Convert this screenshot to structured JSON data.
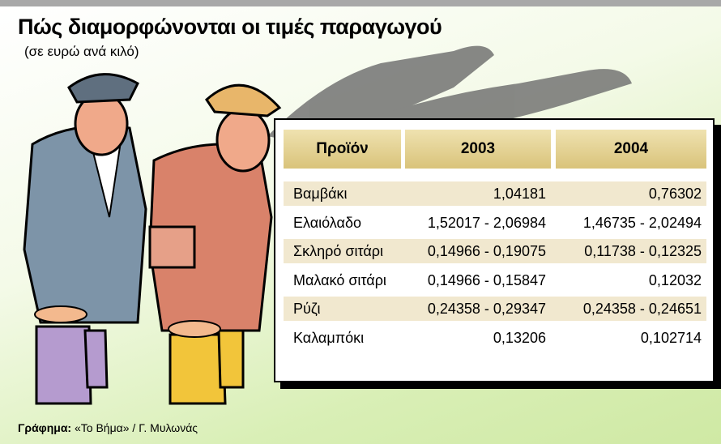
{
  "header": {
    "title": "Πώς διαμορφώνονται οι τιμές παραγωγού",
    "subtitle": "(σε ευρώ ανά κιλό)"
  },
  "table": {
    "columns": [
      "Προϊόν",
      "2003",
      "2004"
    ],
    "rows": [
      [
        "Βαμβάκι",
        "1,04181",
        "0,76302"
      ],
      [
        "Ελαιόλαδο",
        "1,52017 - 2,06984",
        "1,46735 - 2,02494"
      ],
      [
        "Σκληρό σιτάρι",
        "0,14966 - 0,19075",
        "0,11738 - 0,12325"
      ],
      [
        "Μαλακό σιτάρι",
        "0,14966 - 0,15847",
        "0,12032"
      ],
      [
        "Ρύζι",
        "0,24358 - 0,29347",
        "0,24358 - 0,24651"
      ],
      [
        "Καλαμπόκι",
        "0,13206",
        "0,102714"
      ]
    ]
  },
  "credit": {
    "label": "Γράφημα:",
    "text": "«Το Βήμα» / Γ. Μυλωνάς"
  }
}
